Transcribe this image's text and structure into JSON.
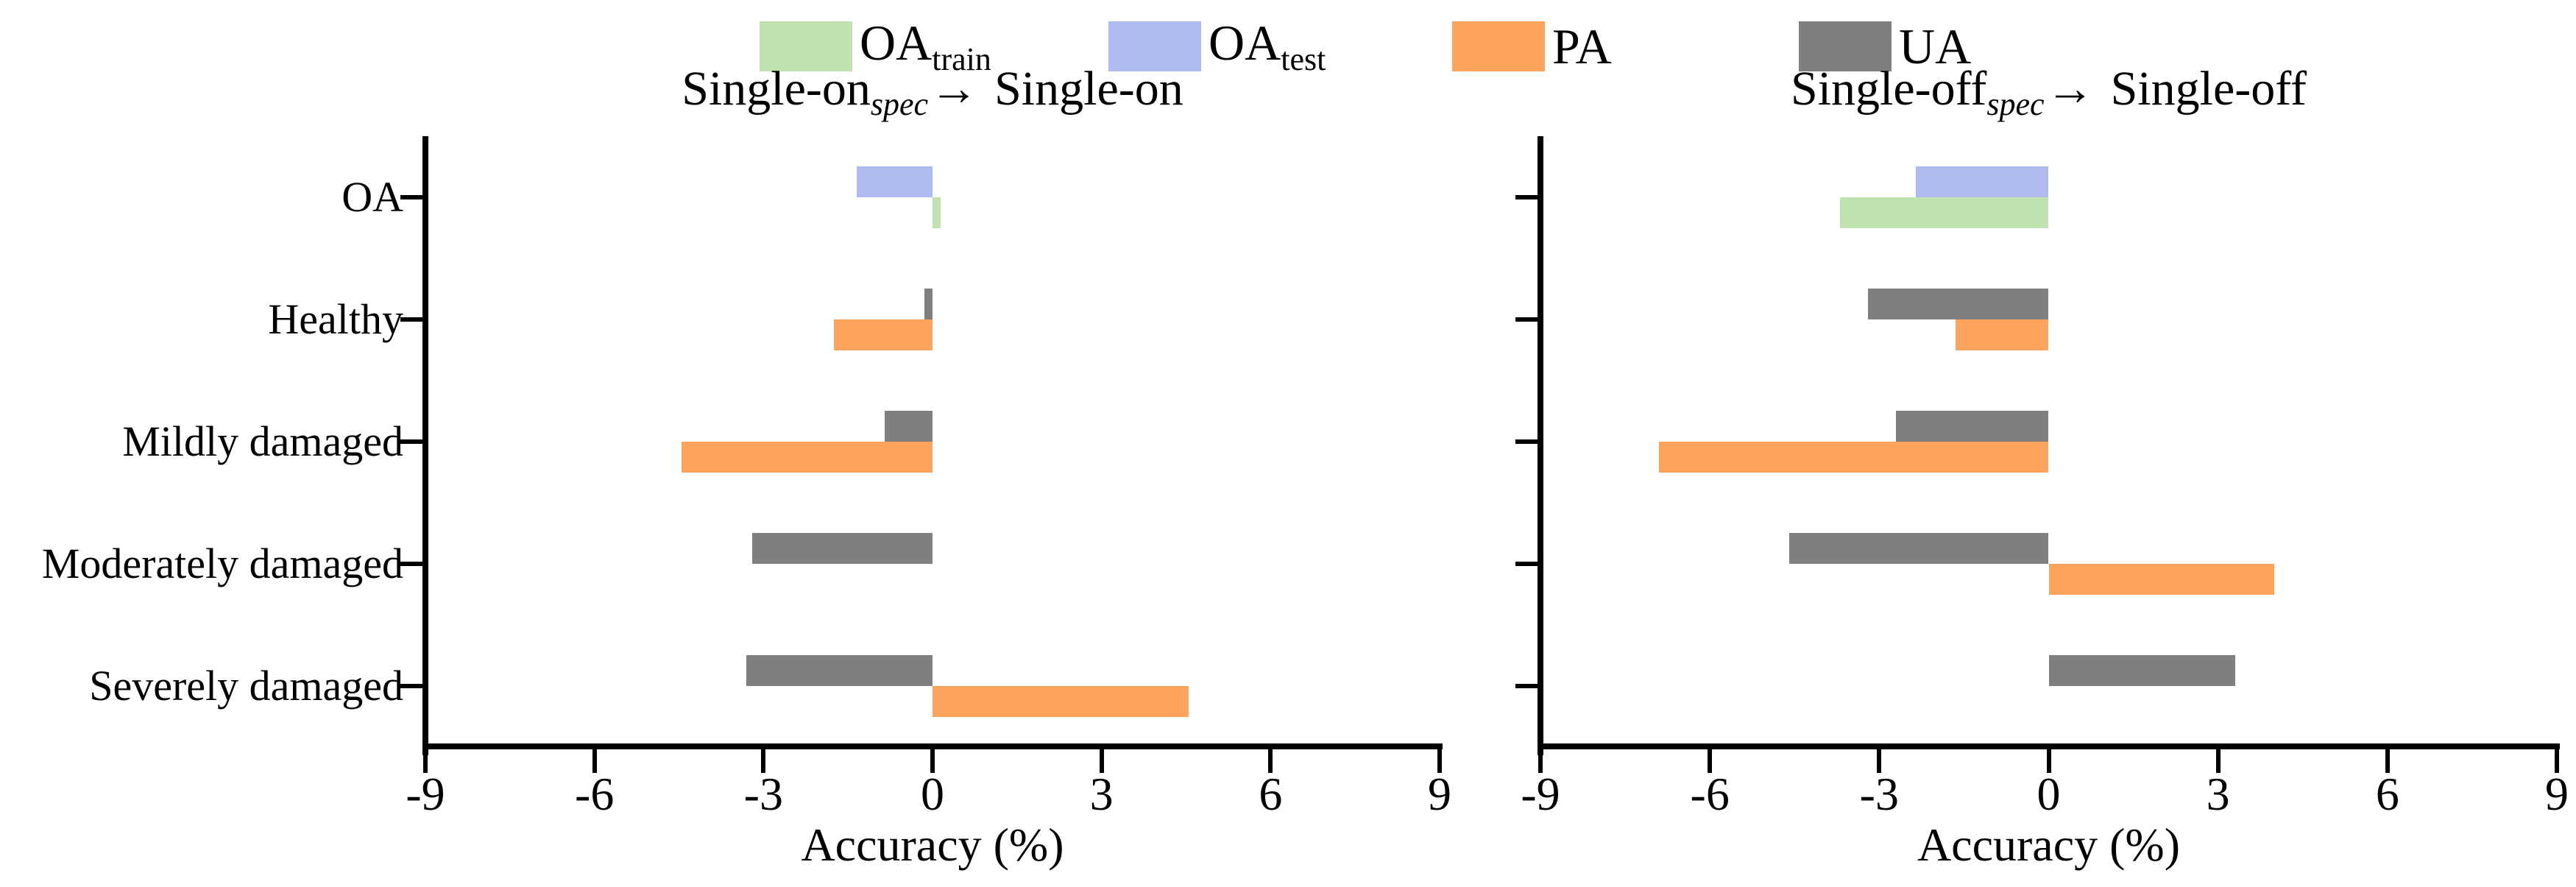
{
  "figure": {
    "background": "#ffffff",
    "axis_color": "#000000"
  },
  "legend": {
    "items": [
      {
        "series": "OA_train",
        "label": "OA",
        "sub": "train",
        "color": "#bfe2b0"
      },
      {
        "series": "OA_test",
        "label": "OA",
        "sub": "test",
        "color": "#b0bcf0"
      },
      {
        "series": "PA",
        "label": "PA",
        "sub": "",
        "color": "#fca35e"
      },
      {
        "series": "UA",
        "label": "UA",
        "sub": "",
        "color": "#7f7f7f"
      }
    ]
  },
  "panels": [
    {
      "title": {
        "base": "Single-on",
        "sub": "spec",
        "arrow": "→",
        "target": "Single-on"
      },
      "xlabel": "Accuracy (%)"
    },
    {
      "title": {
        "base": "Single-off",
        "sub": "spec",
        "arrow": "→",
        "target": "Single-off"
      },
      "xlabel": "Accuracy (%)"
    }
  ],
  "chart_data": [
    {
      "type": "bar",
      "orientation": "horizontal",
      "title": "Single-on_spec → Single-on",
      "xlabel": "Accuracy (%)",
      "xlim": [
        -9,
        9
      ],
      "xticks": [
        -9,
        -6,
        -3,
        0,
        3,
        6,
        9
      ],
      "grid": false,
      "legend_position": "top-center",
      "categories": [
        "OA",
        "Healthy",
        "Mildly damaged",
        "Moderately damaged",
        "Severely damaged"
      ],
      "series": [
        {
          "name": "OA_train",
          "values": [
            0.15,
            null,
            null,
            null,
            null
          ]
        },
        {
          "name": "OA_test",
          "values": [
            -1.35,
            null,
            null,
            null,
            null
          ]
        },
        {
          "name": "PA",
          "values": [
            null,
            -1.75,
            -4.45,
            null,
            4.55
          ]
        },
        {
          "name": "UA",
          "values": [
            null,
            -0.15,
            -0.85,
            -3.2,
            -3.3
          ]
        }
      ]
    },
    {
      "type": "bar",
      "orientation": "horizontal",
      "title": "Single-off_spec → Single-off",
      "xlabel": "Accuracy (%)",
      "xlim": [
        -9,
        9
      ],
      "xticks": [
        -9,
        -6,
        -3,
        0,
        3,
        6,
        9
      ],
      "grid": false,
      "legend_position": "top-center",
      "categories": [
        "OA",
        "Healthy",
        "Mildly damaged",
        "Moderately damaged",
        "Severely damaged"
      ],
      "series": [
        {
          "name": "OA_train",
          "values": [
            -3.7,
            null,
            null,
            null,
            null
          ]
        },
        {
          "name": "OA_test",
          "values": [
            -2.35,
            null,
            null,
            null,
            null
          ]
        },
        {
          "name": "PA",
          "values": [
            null,
            -1.65,
            -6.9,
            4.0,
            null
          ]
        },
        {
          "name": "UA",
          "values": [
            null,
            -3.2,
            -2.7,
            -4.6,
            3.3
          ]
        }
      ]
    }
  ]
}
